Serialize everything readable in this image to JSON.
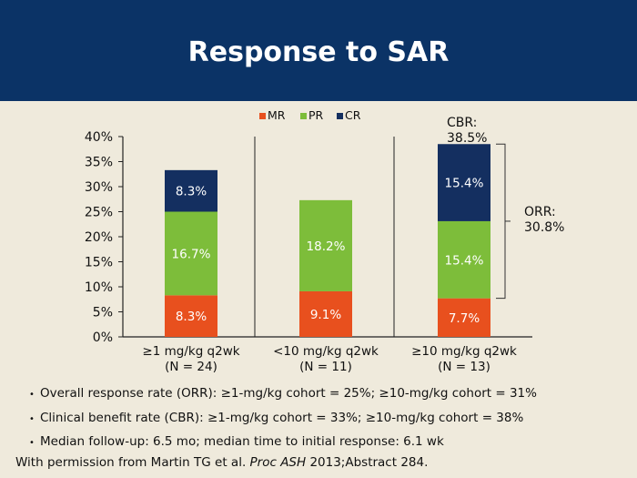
{
  "header": {
    "title": "Response to SAR"
  },
  "colors": {
    "MR": "#e8501e",
    "PR": "#7dbd3a",
    "CR": "#142f60",
    "header_bg": "#0b3366",
    "page_bg": "#efeadc"
  },
  "chart_data": {
    "type": "bar",
    "stacked": true,
    "title": "",
    "xlabel": "",
    "ylabel": "",
    "ylim": [
      0,
      40
    ],
    "y_ticks": [
      "0%",
      "5%",
      "10%",
      "15%",
      "20%",
      "25%",
      "30%",
      "35%",
      "40%"
    ],
    "categories": [
      {
        "line1": "≥1 mg/kg q2wk",
        "line2": "(N = 24)"
      },
      {
        "line1": "<10 mg/kg q2wk",
        "line2": "(N = 11)"
      },
      {
        "line1": "≥10 mg/kg q2wk",
        "line2": "(N = 13)"
      }
    ],
    "series": [
      {
        "name": "MR",
        "values": [
          8.3,
          9.1,
          7.7
        ],
        "labels": [
          "8.3%",
          "9.1%",
          "7.7%"
        ]
      },
      {
        "name": "PR",
        "values": [
          16.7,
          18.2,
          15.4
        ],
        "labels": [
          "16.7%",
          "18.2%",
          "15.4%"
        ]
      },
      {
        "name": "CR",
        "values": [
          8.3,
          0,
          15.4
        ],
        "labels": [
          "8.3%",
          "",
          "15.4%"
        ]
      }
    ],
    "legend": {
      "position": "top",
      "entries": [
        "MR",
        "PR",
        "CR"
      ]
    },
    "annotations": {
      "cbr_line1": "CBR:",
      "cbr_line2": "38.5%",
      "orr_line1": "ORR:",
      "orr_line2": "30.8%"
    },
    "grid": false
  },
  "bullets": [
    "Overall response rate (ORR): ≥1-mg/kg cohort = 25%; ≥10-mg/kg cohort = 31%",
    "Clinical benefit rate (CBR): ≥1-mg/kg cohort = 33%; ≥10-mg/kg cohort = 38%",
    "Median follow-up: 6.5 mo; median time to initial response: 6.1 wk"
  ],
  "footnote": {
    "prefix": "With permission from Martin TG et al. ",
    "journal": "Proc ASH",
    "suffix": " 2013;Abstract 284."
  }
}
